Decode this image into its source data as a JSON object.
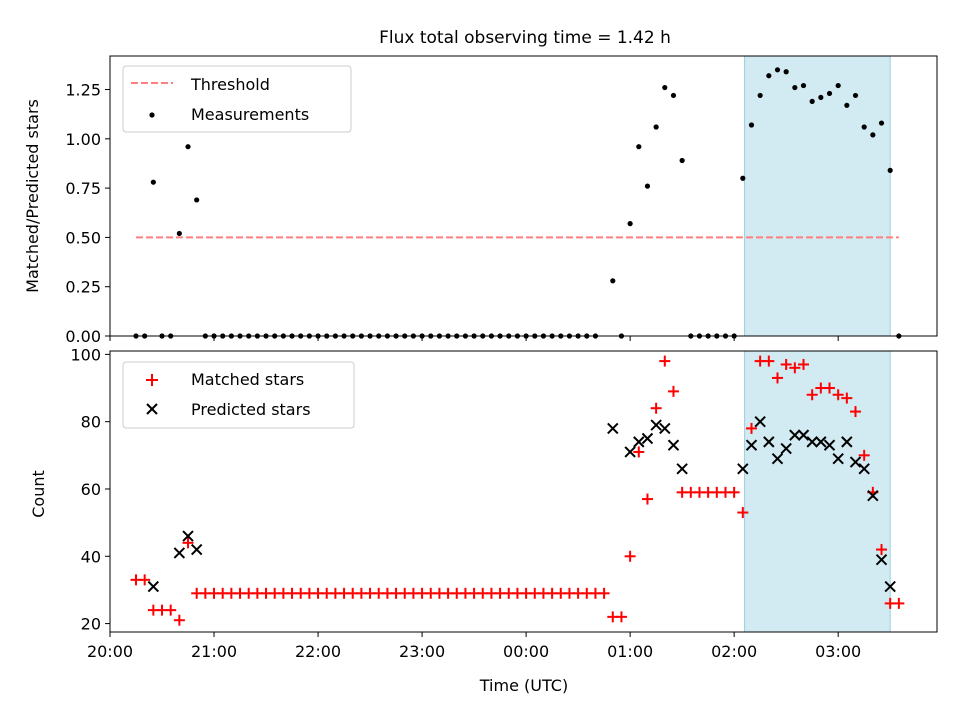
{
  "figure": {
    "title": "Flux total observing time = 1.42 h",
    "xlabel": "Time (UTC)"
  },
  "chart_data": [
    {
      "type": "scatter",
      "title": "Flux total observing time = 1.42 h",
      "ylabel": "Matched/Predicted stars",
      "xlim": [
        "20:00",
        "03:57"
      ],
      "ylim": [
        0,
        1.42
      ],
      "grid": false,
      "legend": "top-left",
      "shaded_region": {
        "from": "02:06",
        "to": "03:30",
        "color": "#add8e6"
      },
      "yticks": [
        {
          "label": "0.00",
          "value": 0
        },
        {
          "label": "0.25",
          "value": 0.25
        },
        {
          "label": "0.50",
          "value": 0.5
        },
        {
          "label": "0.75",
          "value": 0.75
        },
        {
          "label": "1.00",
          "value": 1.0
        },
        {
          "label": "1.25",
          "value": 1.25
        }
      ],
      "series": [
        {
          "name": "Threshold",
          "type": "line",
          "style": "dashed",
          "color": "#ff7f7f",
          "x": [
            "20:15",
            "03:35"
          ],
          "y": [
            0.5,
            0.5
          ]
        },
        {
          "name": "Measurements",
          "type": "scatter",
          "marker": "dot",
          "color": "#000000",
          "points": [
            [
              "20:15",
              0
            ],
            [
              "20:20",
              0
            ],
            [
              "20:25",
              0.78
            ],
            [
              "20:30",
              0
            ],
            [
              "20:35",
              0
            ],
            [
              "20:40",
              0.52
            ],
            [
              "20:45",
              0.96
            ],
            [
              "20:50",
              0.69
            ],
            [
              "20:55",
              0
            ],
            [
              "21:00",
              0
            ],
            [
              "21:05",
              0
            ],
            [
              "21:10",
              0
            ],
            [
              "21:15",
              0
            ],
            [
              "21:20",
              0
            ],
            [
              "21:25",
              0
            ],
            [
              "21:30",
              0
            ],
            [
              "21:35",
              0
            ],
            [
              "21:40",
              0
            ],
            [
              "21:45",
              0
            ],
            [
              "21:50",
              0
            ],
            [
              "21:55",
              0
            ],
            [
              "22:00",
              0
            ],
            [
              "22:05",
              0
            ],
            [
              "22:10",
              0
            ],
            [
              "22:15",
              0
            ],
            [
              "22:20",
              0
            ],
            [
              "22:25",
              0
            ],
            [
              "22:30",
              0
            ],
            [
              "22:35",
              0
            ],
            [
              "22:40",
              0
            ],
            [
              "22:45",
              0
            ],
            [
              "22:50",
              0
            ],
            [
              "22:55",
              0
            ],
            [
              "23:00",
              0
            ],
            [
              "23:05",
              0
            ],
            [
              "23:10",
              0
            ],
            [
              "23:15",
              0
            ],
            [
              "23:20",
              0
            ],
            [
              "23:25",
              0
            ],
            [
              "23:30",
              0
            ],
            [
              "23:35",
              0
            ],
            [
              "23:40",
              0
            ],
            [
              "23:45",
              0
            ],
            [
              "23:50",
              0
            ],
            [
              "23:55",
              0
            ],
            [
              "00:00",
              0
            ],
            [
              "00:05",
              0
            ],
            [
              "00:10",
              0
            ],
            [
              "00:15",
              0
            ],
            [
              "00:20",
              0
            ],
            [
              "00:25",
              0
            ],
            [
              "00:30",
              0
            ],
            [
              "00:35",
              0
            ],
            [
              "00:40",
              0
            ],
            [
              "00:50",
              0.28
            ],
            [
              "00:55",
              0
            ],
            [
              "01:00",
              0.57
            ],
            [
              "01:05",
              0.96
            ],
            [
              "01:10",
              0.76
            ],
            [
              "01:15",
              1.06
            ],
            [
              "01:20",
              1.26
            ],
            [
              "01:25",
              1.22
            ],
            [
              "01:30",
              0.89
            ],
            [
              "01:35",
              0
            ],
            [
              "01:40",
              0
            ],
            [
              "01:45",
              0
            ],
            [
              "01:50",
              0
            ],
            [
              "01:55",
              0
            ],
            [
              "02:00",
              0
            ],
            [
              "02:05",
              0.8
            ],
            [
              "02:10",
              1.07
            ],
            [
              "02:15",
              1.22
            ],
            [
              "02:20",
              1.32
            ],
            [
              "02:25",
              1.35
            ],
            [
              "02:30",
              1.34
            ],
            [
              "02:35",
              1.26
            ],
            [
              "02:40",
              1.27
            ],
            [
              "02:45",
              1.19
            ],
            [
              "02:50",
              1.21
            ],
            [
              "02:55",
              1.23
            ],
            [
              "03:00",
              1.27
            ],
            [
              "03:05",
              1.17
            ],
            [
              "03:10",
              1.22
            ],
            [
              "03:15",
              1.06
            ],
            [
              "03:20",
              1.02
            ],
            [
              "03:25",
              1.08
            ],
            [
              "03:30",
              0.84
            ],
            [
              "03:35",
              0
            ]
          ]
        }
      ]
    },
    {
      "type": "scatter",
      "ylabel": "Count",
      "xlim": [
        "20:00",
        "03:57"
      ],
      "ylim": [
        17.5,
        101
      ],
      "grid": false,
      "legend": "top-left",
      "shaded_region": {
        "from": "02:06",
        "to": "03:30",
        "color": "#add8e6"
      },
      "xticks": [
        {
          "label": "20:00",
          "value": "20:00"
        },
        {
          "label": "21:00",
          "value": "21:00"
        },
        {
          "label": "22:00",
          "value": "22:00"
        },
        {
          "label": "23:00",
          "value": "23:00"
        },
        {
          "label": "00:00",
          "value": "00:00"
        },
        {
          "label": "01:00",
          "value": "01:00"
        },
        {
          "label": "02:00",
          "value": "02:00"
        },
        {
          "label": "03:00",
          "value": "03:00"
        }
      ],
      "yticks": [
        {
          "label": "20",
          "value": 20
        },
        {
          "label": "40",
          "value": 40
        },
        {
          "label": "60",
          "value": 60
        },
        {
          "label": "80",
          "value": 80
        },
        {
          "label": "100",
          "value": 100
        }
      ],
      "series": [
        {
          "name": "Matched stars",
          "marker": "plus",
          "color": "#ff0000",
          "points": [
            [
              "20:15",
              33
            ],
            [
              "20:20",
              33
            ],
            [
              "20:25",
              24
            ],
            [
              "20:30",
              24
            ],
            [
              "20:35",
              24
            ],
            [
              "20:40",
              21
            ],
            [
              "20:45",
              44
            ],
            [
              "20:50",
              29
            ],
            [
              "20:55",
              29
            ],
            [
              "21:00",
              29
            ],
            [
              "21:05",
              29
            ],
            [
              "21:10",
              29
            ],
            [
              "21:15",
              29
            ],
            [
              "21:20",
              29
            ],
            [
              "21:25",
              29
            ],
            [
              "21:30",
              29
            ],
            [
              "21:35",
              29
            ],
            [
              "21:40",
              29
            ],
            [
              "21:45",
              29
            ],
            [
              "21:50",
              29
            ],
            [
              "21:55",
              29
            ],
            [
              "22:00",
              29
            ],
            [
              "22:05",
              29
            ],
            [
              "22:10",
              29
            ],
            [
              "22:15",
              29
            ],
            [
              "22:20",
              29
            ],
            [
              "22:25",
              29
            ],
            [
              "22:30",
              29
            ],
            [
              "22:35",
              29
            ],
            [
              "22:40",
              29
            ],
            [
              "22:45",
              29
            ],
            [
              "22:50",
              29
            ],
            [
              "22:55",
              29
            ],
            [
              "23:00",
              29
            ],
            [
              "23:05",
              29
            ],
            [
              "23:10",
              29
            ],
            [
              "23:15",
              29
            ],
            [
              "23:20",
              29
            ],
            [
              "23:25",
              29
            ],
            [
              "23:30",
              29
            ],
            [
              "23:35",
              29
            ],
            [
              "23:40",
              29
            ],
            [
              "23:45",
              29
            ],
            [
              "23:50",
              29
            ],
            [
              "23:55",
              29
            ],
            [
              "00:00",
              29
            ],
            [
              "00:05",
              29
            ],
            [
              "00:10",
              29
            ],
            [
              "00:15",
              29
            ],
            [
              "00:20",
              29
            ],
            [
              "00:25",
              29
            ],
            [
              "00:30",
              29
            ],
            [
              "00:35",
              29
            ],
            [
              "00:40",
              29
            ],
            [
              "00:45",
              29
            ],
            [
              "00:50",
              22
            ],
            [
              "00:55",
              22
            ],
            [
              "01:00",
              40
            ],
            [
              "01:05",
              71
            ],
            [
              "01:10",
              57
            ],
            [
              "01:15",
              84
            ],
            [
              "01:20",
              98
            ],
            [
              "01:25",
              89
            ],
            [
              "01:30",
              59
            ],
            [
              "01:35",
              59
            ],
            [
              "01:40",
              59
            ],
            [
              "01:45",
              59
            ],
            [
              "01:50",
              59
            ],
            [
              "01:55",
              59
            ],
            [
              "02:00",
              59
            ],
            [
              "02:05",
              53
            ],
            [
              "02:10",
              78
            ],
            [
              "02:15",
              98
            ],
            [
              "02:20",
              98
            ],
            [
              "02:25",
              93
            ],
            [
              "02:30",
              97
            ],
            [
              "02:35",
              96
            ],
            [
              "02:40",
              97
            ],
            [
              "02:45",
              88
            ],
            [
              "02:50",
              90
            ],
            [
              "02:55",
              90
            ],
            [
              "03:00",
              88
            ],
            [
              "03:05",
              87
            ],
            [
              "03:10",
              83
            ],
            [
              "03:15",
              70
            ],
            [
              "03:20",
              59
            ],
            [
              "03:25",
              42
            ],
            [
              "03:30",
              26
            ],
            [
              "03:35",
              26
            ]
          ]
        },
        {
          "name": "Predicted stars",
          "marker": "x",
          "color": "#000000",
          "points": [
            [
              "20:25",
              31
            ],
            [
              "20:40",
              41
            ],
            [
              "20:45",
              46
            ],
            [
              "20:50",
              42
            ],
            [
              "00:50",
              78
            ],
            [
              "01:00",
              71
            ],
            [
              "01:05",
              74
            ],
            [
              "01:10",
              75
            ],
            [
              "01:15",
              79
            ],
            [
              "01:20",
              78
            ],
            [
              "01:25",
              73
            ],
            [
              "01:30",
              66
            ],
            [
              "02:05",
              66
            ],
            [
              "02:10",
              73
            ],
            [
              "02:15",
              80
            ],
            [
              "02:20",
              74
            ],
            [
              "02:25",
              69
            ],
            [
              "02:30",
              72
            ],
            [
              "02:35",
              76
            ],
            [
              "02:40",
              76
            ],
            [
              "02:45",
              74
            ],
            [
              "02:50",
              74
            ],
            [
              "02:55",
              73
            ],
            [
              "03:00",
              69
            ],
            [
              "03:05",
              74
            ],
            [
              "03:10",
              68
            ],
            [
              "03:15",
              66
            ],
            [
              "03:20",
              58
            ],
            [
              "03:25",
              39
            ],
            [
              "03:30",
              31
            ]
          ]
        }
      ]
    }
  ]
}
